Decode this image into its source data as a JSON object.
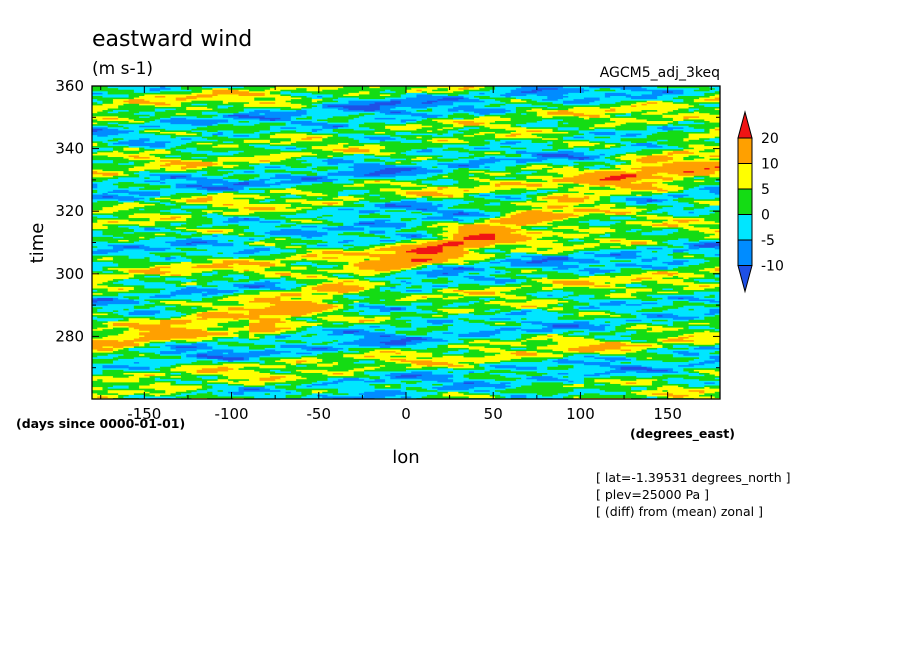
{
  "chart_data": {
    "type": "heatmap",
    "title": "eastward wind",
    "units": "(m s-1)",
    "experiment": "AGCM5_adj_3keq",
    "xlabel": "lon",
    "xunits": "(degrees_east)",
    "ylabel": "time",
    "yunits": "(days since 0000-01-01)",
    "xlim": [
      -180,
      180
    ],
    "ylim": [
      260,
      360
    ],
    "xticks": [
      -150,
      -100,
      -50,
      0,
      50,
      100,
      150
    ],
    "yticks": [
      280,
      300,
      320,
      340,
      360
    ],
    "xtick_labels": [
      "-150",
      "-100",
      "-50",
      "0",
      "50",
      "100",
      "150"
    ],
    "ytick_labels": [
      "280",
      "300",
      "320",
      "340",
      "360"
    ],
    "colorbar": {
      "levels": [
        -10,
        -5,
        0,
        5,
        10,
        20
      ],
      "level_labels": [
        "-10",
        "-5",
        "0",
        "5",
        "10",
        "20"
      ],
      "colors": [
        "#1e50e6",
        "#008cff",
        "#00e6ff",
        "#14dc14",
        "#ffff00",
        "#ffa000",
        "#f01414"
      ],
      "extend": "both"
    },
    "features": [
      {
        "desc": "eastward-propagating band",
        "lon_start": -180,
        "time_start": 275,
        "lon_end": 180,
        "time_end": 335,
        "sign": "positive"
      },
      {
        "desc": "eastward-propagating band",
        "lon_start": -80,
        "time_start": 285,
        "lon_end": 180,
        "time_end": 345,
        "sign": "positive"
      }
    ]
  },
  "notes": [
    "[ lat=-1.39531 degrees_north ]",
    "[ plev=25000 Pa ]",
    "[ (diff) from (mean) zonal ]"
  ]
}
